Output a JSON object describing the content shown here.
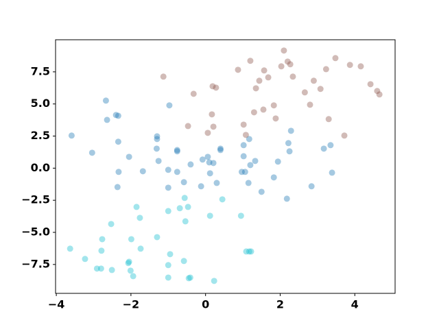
{
  "chart_data": {
    "type": "scatter",
    "xlim": [
      -4.02,
      5.08
    ],
    "ylim": [
      -9.75,
      10.0
    ],
    "xticks": [
      {
        "value": -4,
        "label": "−4"
      },
      {
        "value": -2,
        "label": "−2"
      },
      0,
      2,
      4
    ],
    "yticks": [
      {
        "value": -7.5,
        "label": "−7.5"
      },
      {
        "value": -5,
        "label": "−5.0"
      },
      {
        "value": -2.5,
        "label": "−2.5"
      },
      {
        "value": 0,
        "label": "0.0"
      },
      2.5,
      {
        "value": 5,
        "label": "5.0"
      },
      7.5
    ],
    "alpha": 0.4,
    "series": [
      {
        "color": "#1f77b4",
        "x": [
          -3.59,
          -3.04,
          -2.67,
          -2.64,
          -2.4,
          -2.34,
          -2.34,
          -2.33,
          -2.36,
          -2.05,
          -1.68,
          -1.3,
          -1.3,
          -1.26,
          -1.31,
          -0.97,
          -1.0,
          -1.0,
          -0.76,
          -0.76,
          -0.76,
          -0.58,
          -0.4,
          -0.12,
          -0.08,
          0.06,
          0.1,
          0.12,
          0.21,
          0.3,
          0.4,
          0.4,
          1.02,
          1.02,
          1.06,
          0.97,
          1.17,
          1.15,
          1.2,
          1.33,
          1.5,
          1.83,
          1.94,
          2.18,
          2.22,
          2.25,
          2.29,
          2.84,
          3.17,
          3.35,
          3.39
        ],
        "y": [
          2.54,
          1.2,
          5.26,
          3.76,
          4.14,
          4.08,
          2.06,
          -0.29,
          -1.47,
          0.88,
          -0.24,
          2.48,
          2.27,
          0.56,
          1.52,
          4.89,
          -0.13,
          -1.52,
          1.41,
          1.31,
          -0.29,
          -1.09,
          0.29,
          -1.41,
          0.67,
          0.88,
          0.45,
          -0.4,
          0.4,
          -1.15,
          1.52,
          1.41,
          1.79,
          0.93,
          -0.29,
          -0.29,
          2.27,
          -1.15,
          0.24,
          0.56,
          -1.84,
          -0.72,
          0.51,
          -2.38,
          1.95,
          1.31,
          2.91,
          -1.41,
          1.52,
          1.79,
          -0.35
        ]
      },
      {
        "color": "#8c564b",
        "x": [
          -1.13,
          -0.32,
          -0.47,
          0.19,
          0.28,
          0.17,
          0.21,
          0.06,
          0.87,
          1.02,
          1.08,
          1.2,
          1.3,
          1.35,
          1.44,
          1.57,
          1.55,
          1.68,
          1.83,
          1.88,
          2.03,
          2.1,
          2.2,
          2.27,
          2.34,
          2.66,
          2.8,
          2.9,
          3.08,
          3.23,
          3.3,
          3.48,
          3.72,
          3.87,
          4.16,
          4.42,
          4.6,
          4.66
        ],
        "y": [
          7.13,
          5.79,
          3.28,
          6.38,
          6.27,
          4.19,
          3.23,
          2.75,
          7.66,
          3.39,
          2.59,
          8.36,
          4.35,
          6.22,
          6.81,
          7.61,
          4.56,
          7.07,
          4.89,
          3.87,
          7.93,
          9.16,
          8.3,
          8.09,
          7.13,
          5.9,
          4.94,
          6.81,
          6.17,
          7.71,
          3.82,
          8.57,
          2.54,
          8.04,
          7.93,
          6.54,
          6.01,
          5.74
        ]
      },
      {
        "color": "#17becf",
        "x": [
          -3.63,
          -3.23,
          -2.91,
          -2.79,
          -2.8,
          -2.77,
          -2.53,
          -2.51,
          -2.05,
          -2.07,
          -2.01,
          -1.94,
          -1.99,
          -1.85,
          -1.76,
          -1.74,
          -1.3,
          -1.0,
          -1.0,
          -1.0,
          -0.95,
          -0.69,
          -0.56,
          -0.47,
          -0.58,
          -0.54,
          -0.45,
          -0.41,
          0.12,
          0.23,
          0.45,
          0.95,
          1.09,
          1.17,
          1.22
        ],
        "y": [
          -6.27,
          -7.07,
          -7.82,
          -6.43,
          -7.82,
          -5.53,
          -4.35,
          -7.93,
          -7.29,
          -7.39,
          -7.98,
          -8.41,
          -5.53,
          -3.02,
          -3.87,
          -6.27,
          -5.37,
          -3.34,
          -7.55,
          -8.52,
          -6.7,
          -3.12,
          -2.32,
          -3.02,
          -7.23,
          -4.14,
          -8.57,
          -8.52,
          -3.71,
          -8.78,
          -2.43,
          -3.71,
          -6.49,
          -6.49,
          -6.49
        ]
      }
    ]
  }
}
